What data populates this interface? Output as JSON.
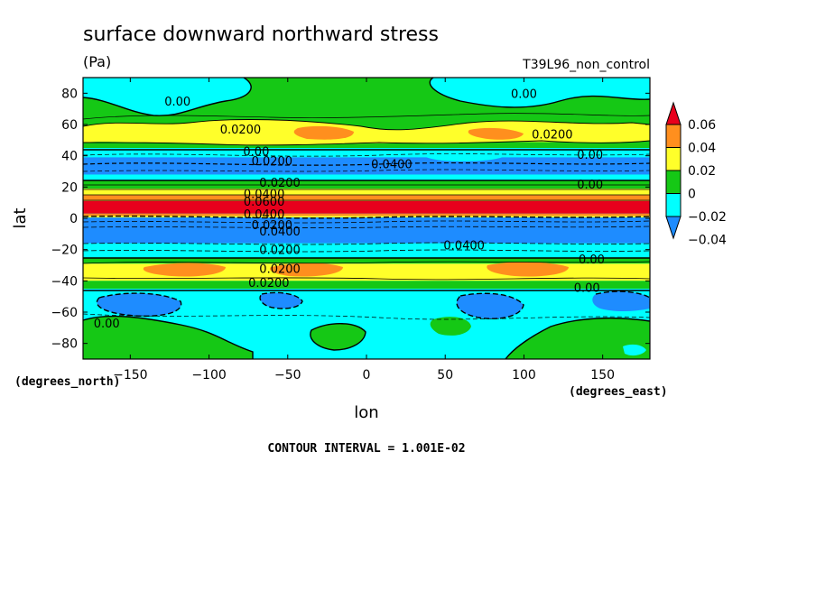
{
  "chart_data": {
    "type": "heatmap",
    "title": "surface downward northward stress",
    "units": "(Pa)",
    "dataset": "T39L96_non_control",
    "xlabel": "lon",
    "ylabel": "lat",
    "x_units": "(degrees_east)",
    "y_units": "(degrees_north)",
    "xlim": [
      -180,
      180
    ],
    "ylim": [
      -90,
      90
    ],
    "x_ticks": [
      -150,
      -100,
      -50,
      0,
      50,
      100,
      150
    ],
    "y_ticks": [
      80,
      60,
      40,
      20,
      0,
      -20,
      -40,
      -60,
      -80
    ],
    "x_tick_labels": [
      "−150",
      "−100",
      "−50",
      "0",
      "50",
      "100",
      "150"
    ],
    "y_tick_labels": [
      "80",
      "60",
      "40",
      "20",
      "0",
      "−20",
      "−40",
      "−60",
      "−80"
    ],
    "footer": "CONTOUR INTERVAL = 1.001E-02",
    "colorbar": {
      "levels": [
        0.06,
        0.04,
        0.02,
        0,
        -0.02,
        -0.04
      ],
      "labels": [
        "0.06",
        "0.04",
        "0.02",
        "0",
        "−0.02",
        "−0.04"
      ],
      "colors": [
        "#e8001c",
        "#ff8f1e",
        "#ffff2a",
        "#15c815",
        "#00ffff",
        "#1e8cff"
      ]
    },
    "contour_labels": [
      {
        "text": "0.00",
        "lon": -120,
        "lat": 75
      },
      {
        "text": "0.0200",
        "lon": -80,
        "lat": 57
      },
      {
        "text": "0.00",
        "lon": 100,
        "lat": 80
      },
      {
        "text": "0.0200",
        "lon": 118,
        "lat": 54
      },
      {
        "text": "0.00",
        "lon": 142,
        "lat": 41
      },
      {
        "text": "0.0400",
        "lon": 16,
        "lat": 35
      },
      {
        "text": "0.0200",
        "lon": -60,
        "lat": 37
      },
      {
        "text": "0.00",
        "lon": -70,
        "lat": 43
      },
      {
        "text": "0.00",
        "lon": 142,
        "lat": 22
      },
      {
        "text": "0.0200",
        "lon": -55,
        "lat": 23
      },
      {
        "text": "0.0400",
        "lon": -65,
        "lat": 16
      },
      {
        "text": "0.0600",
        "lon": -65,
        "lat": 11
      },
      {
        "text": "0.0400",
        "lon": -65,
        "lat": 3
      },
      {
        "text": "0.0200",
        "lon": -60,
        "lat": -4
      },
      {
        "text": "0.0400",
        "lon": -55,
        "lat": -8
      },
      {
        "text": "0.0400",
        "lon": 62,
        "lat": -17
      },
      {
        "text": "0.0200",
        "lon": -55,
        "lat": -20
      },
      {
        "text": "0.0200",
        "lon": -55,
        "lat": -32
      },
      {
        "text": "0.00",
        "lon": 143,
        "lat": -26
      },
      {
        "text": "0.00",
        "lon": 140,
        "lat": -44
      },
      {
        "text": "0.0200",
        "lon": -62,
        "lat": -41
      },
      {
        "text": "0.00",
        "lon": -165,
        "lat": -67
      }
    ]
  }
}
